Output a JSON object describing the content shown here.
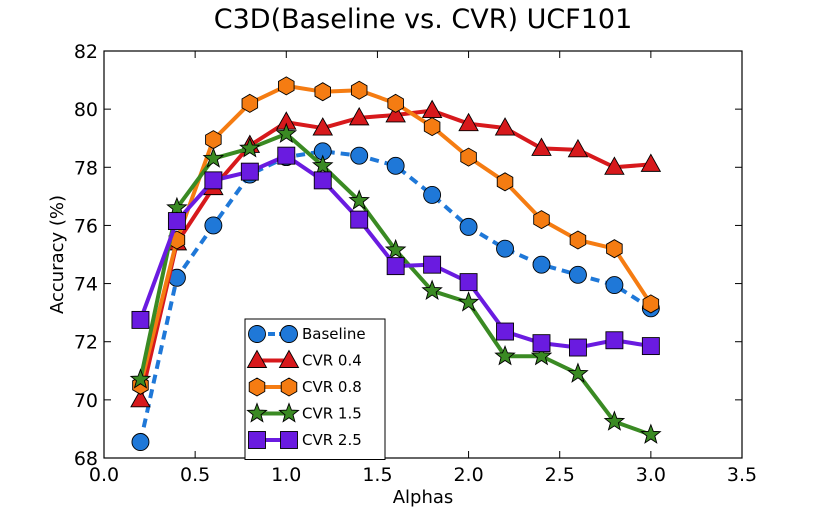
{
  "chart_data": {
    "type": "line",
    "title": "C3D(Baseline vs. CVR) UCF101",
    "xlabel": "Alphas",
    "ylabel": "Accuracy (%)",
    "xlim": [
      0.0,
      3.5
    ],
    "ylim": [
      68,
      82
    ],
    "xticks": [
      0.0,
      0.5,
      1.0,
      1.5,
      2.0,
      2.5,
      3.0,
      3.5
    ],
    "xtick_labels": [
      "0.0",
      "0.5",
      "1.0",
      "1.5",
      "2.0",
      "2.5",
      "3.0",
      "3.5"
    ],
    "yticks": [
      68,
      70,
      72,
      74,
      76,
      78,
      80,
      82
    ],
    "ytick_labels": [
      "68",
      "70",
      "72",
      "74",
      "76",
      "78",
      "80",
      "82"
    ],
    "grid": false,
    "legend_position": "lower-center",
    "x": [
      0.2,
      0.4,
      0.6,
      0.8,
      1.0,
      1.2,
      1.4,
      1.6,
      1.8,
      2.0,
      2.2,
      2.4,
      2.6,
      2.8,
      3.0
    ],
    "series": [
      {
        "name": "Baseline",
        "color": "#1f78d8",
        "line_style": "dashed",
        "marker": "circle",
        "values": [
          68.55,
          74.2,
          76.0,
          77.75,
          78.35,
          78.55,
          78.4,
          78.05,
          77.05,
          75.95,
          75.2,
          74.65,
          74.3,
          73.95,
          73.15
        ]
      },
      {
        "name": "CVR 0.4",
        "color": "#d7191c",
        "line_style": "solid",
        "marker": "triangle",
        "values": [
          70.0,
          75.4,
          77.3,
          78.75,
          79.55,
          79.35,
          79.7,
          79.8,
          79.95,
          79.5,
          79.35,
          78.65,
          78.6,
          78.0,
          78.1
        ]
      },
      {
        "name": "CVR 0.8",
        "color": "#f57c12",
        "line_style": "solid",
        "marker": "hexagon",
        "values": [
          70.5,
          75.5,
          78.95,
          80.2,
          80.8,
          80.6,
          80.65,
          80.2,
          79.4,
          78.35,
          77.5,
          76.2,
          75.5,
          75.2,
          73.3
        ]
      },
      {
        "name": "CVR 1.5",
        "color": "#3a8a23",
        "line_style": "solid",
        "marker": "star",
        "values": [
          70.7,
          76.6,
          78.3,
          78.65,
          79.15,
          78.05,
          76.85,
          75.15,
          73.75,
          73.35,
          71.5,
          71.5,
          70.9,
          69.25,
          68.8
        ]
      },
      {
        "name": "CVR 2.5",
        "color": "#6a1be0",
        "line_style": "solid",
        "marker": "square",
        "values": [
          72.75,
          76.15,
          77.55,
          77.85,
          78.4,
          77.55,
          76.2,
          74.6,
          74.65,
          74.05,
          72.35,
          71.95,
          71.8,
          72.05,
          71.85
        ]
      }
    ]
  }
}
